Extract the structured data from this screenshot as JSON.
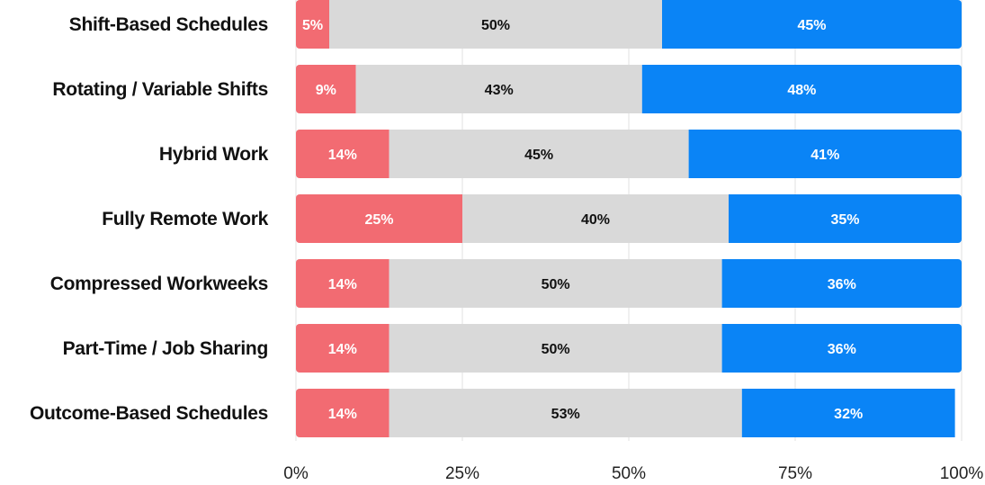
{
  "chart_data": {
    "type": "bar",
    "orientation": "horizontal",
    "stacked": true,
    "title": "",
    "xlabel": "",
    "ylabel": "",
    "xlim": [
      0,
      100
    ],
    "grid": true,
    "categories": [
      "Shift-Based Schedules",
      "Rotating / Variable Shifts",
      "Hybrid Work",
      "Fully Remote Work",
      "Compressed Workweeks",
      "Part-Time / Job Sharing",
      "Outcome-Based Schedules"
    ],
    "series": [
      {
        "name": "segment-1",
        "color": "#f26b72",
        "text_color": "#ffffff",
        "values": [
          5,
          9,
          14,
          25,
          14,
          14,
          14
        ]
      },
      {
        "name": "segment-2",
        "color": "#d9d9d9",
        "text_color": "#111111",
        "values": [
          50,
          43,
          45,
          40,
          50,
          50,
          53
        ]
      },
      {
        "name": "segment-3",
        "color": "#0a84f6",
        "text_color": "#ffffff",
        "values": [
          45,
          48,
          41,
          35,
          36,
          36,
          32
        ]
      }
    ],
    "data_labels": [
      [
        "5%",
        "9%",
        "14%",
        "25%",
        "14%",
        "14%",
        "14%"
      ],
      [
        "50%",
        "43%",
        "45%",
        "40%",
        "50%",
        "50%",
        "53%"
      ],
      [
        "45%",
        "48%",
        "41%",
        "35%",
        "36%",
        "36%",
        "32%"
      ]
    ],
    "x_ticks": [
      0,
      25,
      50,
      75,
      100
    ],
    "x_tick_labels": [
      "0%",
      "25%",
      "50%",
      "75%",
      "100%"
    ]
  }
}
